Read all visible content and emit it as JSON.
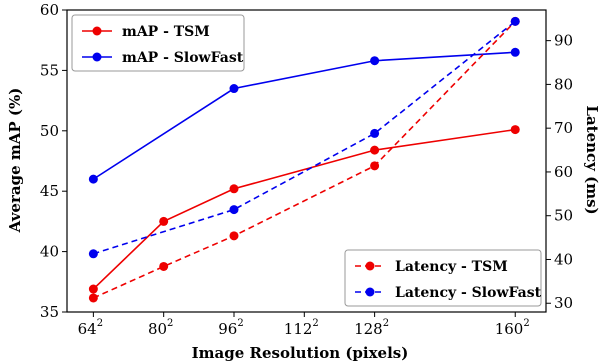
{
  "chart_data": {
    "type": "line",
    "xlabel": "Image Resolution (pixels)",
    "ylabel_left": "Average mAP (%)",
    "ylabel_right": "Latency (ms)",
    "x_ticks": [
      {
        "base": "64",
        "exp": "2",
        "value": 64
      },
      {
        "base": "80",
        "exp": "2",
        "value": 80
      },
      {
        "base": "96",
        "exp": "2",
        "value": 96
      },
      {
        "base": "112",
        "exp": "2",
        "value": 112
      },
      {
        "base": "128",
        "exp": "2",
        "value": 128
      },
      {
        "base": "160",
        "exp": "2",
        "value": 160
      }
    ],
    "xlim": [
      58,
      167
    ],
    "ylim_left": [
      35,
      60
    ],
    "yticks_left": [
      "35",
      "40",
      "45",
      "50",
      "55",
      "60"
    ],
    "ylim_right": [
      28,
      97
    ],
    "yticks_right": [
      "30",
      "40",
      "50",
      "60",
      "70",
      "80",
      "90"
    ],
    "grid": false,
    "legend_top": {
      "placement": "top-left"
    },
    "legend_bottom": {
      "placement": "bottom-right"
    },
    "series": [
      {
        "name": "mAP - TSM",
        "axis": "left",
        "style": "solid",
        "color": "#ee0000",
        "x": [
          64,
          80,
          96,
          128,
          160
        ],
        "values": [
          36.9,
          42.5,
          45.2,
          48.4,
          50.1
        ]
      },
      {
        "name": "mAP - SlowFast",
        "axis": "left",
        "style": "solid",
        "color": "#0000ee",
        "x": [
          64,
          96,
          128,
          160
        ],
        "values": [
          46.0,
          53.5,
          55.8,
          56.5
        ]
      },
      {
        "name": "Latency - TSM",
        "axis": "right",
        "style": "dashed",
        "color": "#ee0000",
        "x": [
          64,
          80,
          96,
          128,
          160
        ],
        "values": [
          31.2,
          38.4,
          45.4,
          61.4,
          94.4
        ]
      },
      {
        "name": "Latency - SlowFast",
        "axis": "right",
        "style": "dashed",
        "color": "#0000ee",
        "x": [
          64,
          96,
          128,
          160
        ],
        "values": [
          41.3,
          51.4,
          68.8,
          94.4
        ]
      }
    ]
  }
}
